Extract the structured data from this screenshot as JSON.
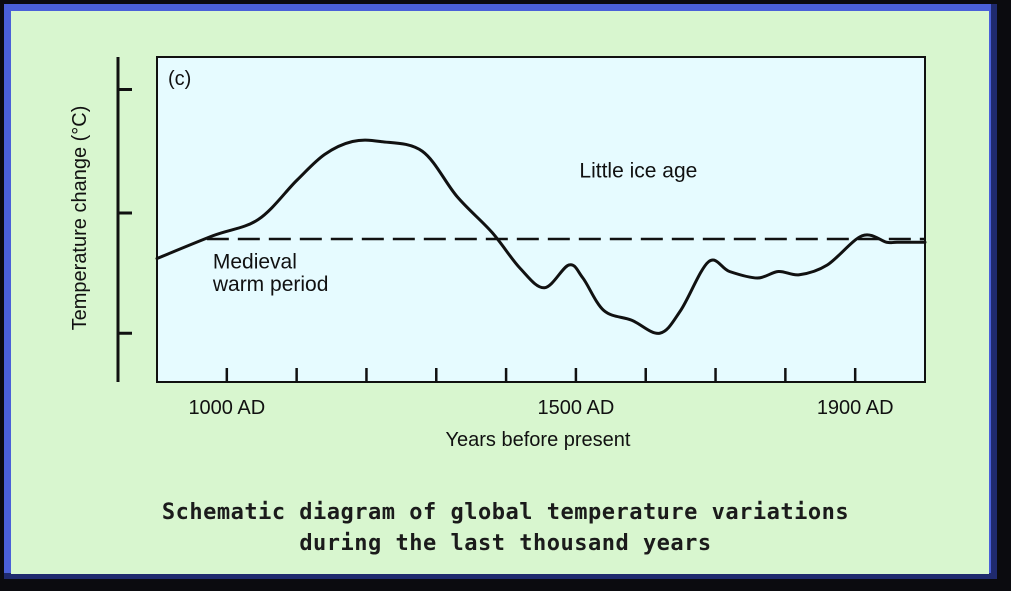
{
  "colors": {
    "frame": "#4a60d8",
    "panel": "#d8f6cf",
    "plot_background": "#e6fbff",
    "line": "#111111"
  },
  "caption": {
    "line1": "Schematic diagram of global temperature variations",
    "line2": "during the last thousand years"
  },
  "chart_data": {
    "type": "line",
    "panel_label": "(c)",
    "xlabel": "Years before present",
    "ylabel": "Temperature change (°C)",
    "xlim": [
      900,
      2000
    ],
    "ylim": [
      0,
      10
    ],
    "x_ticks": [
      {
        "x": 1000,
        "label": "1000 AD"
      },
      {
        "x": 1100,
        "label": ""
      },
      {
        "x": 1200,
        "label": ""
      },
      {
        "x": 1300,
        "label": ""
      },
      {
        "x": 1400,
        "label": ""
      },
      {
        "x": 1500,
        "label": "1500 AD"
      },
      {
        "x": 1600,
        "label": ""
      },
      {
        "x": 1700,
        "label": ""
      },
      {
        "x": 1800,
        "label": ""
      },
      {
        "x": 1900,
        "label": "1900 AD"
      }
    ],
    "y_ticks": [
      1.5,
      5.2,
      9.0
    ],
    "y_tick_labels_shown": false,
    "reference_level": 4.4,
    "reference_style": "dashed",
    "annotations": [
      {
        "text": "Little ice age",
        "x": 1505,
        "y": 6.3
      },
      {
        "text": "Medieval",
        "x": 980,
        "y": 3.5
      },
      {
        "text": "warm period",
        "x": 980,
        "y": 2.8
      }
    ],
    "series": [
      {
        "x": [
          900,
          980,
          1045,
          1100,
          1140,
          1180,
          1220,
          1280,
          1330,
          1380,
          1420,
          1455,
          1490,
          1510,
          1540,
          1580,
          1620,
          1650,
          1690,
          1720,
          1760,
          1790,
          1820,
          1860,
          1910,
          1945,
          1960,
          2000
        ],
        "y": [
          3.8,
          4.5,
          5.0,
          6.2,
          7.0,
          7.4,
          7.4,
          7.1,
          5.7,
          4.6,
          3.5,
          2.9,
          3.6,
          3.2,
          2.2,
          1.9,
          1.5,
          2.2,
          3.7,
          3.4,
          3.2,
          3.4,
          3.3,
          3.6,
          4.5,
          4.3,
          4.3,
          4.3
        ]
      }
    ]
  }
}
